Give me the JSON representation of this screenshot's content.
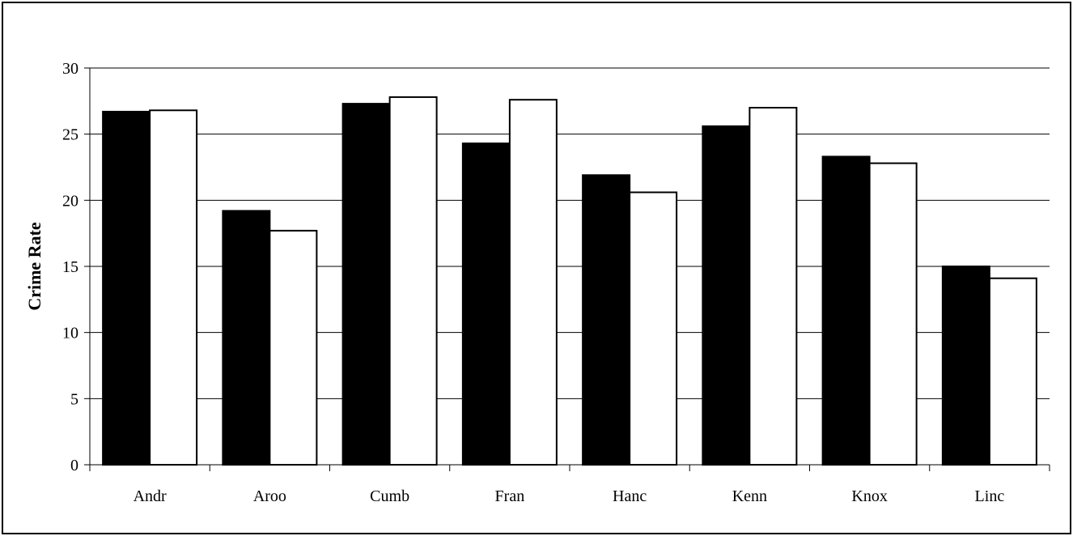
{
  "chart_data": {
    "type": "bar",
    "title": "",
    "xlabel": "",
    "ylabel": "Crime Rate",
    "ylim": [
      0,
      30
    ],
    "yticks": [
      0,
      5,
      10,
      15,
      20,
      25,
      30
    ],
    "grid": true,
    "legend": "none",
    "categories": [
      "Andr",
      "Aroo",
      "Cumb",
      "Fran",
      "Hanc",
      "Kenn",
      "Knox",
      "Linc"
    ],
    "series": [
      {
        "color": "#000000",
        "values": [
          26.7,
          19.2,
          27.3,
          24.3,
          21.9,
          25.6,
          23.3,
          15.0
        ]
      },
      {
        "color": "#ffffff",
        "values": [
          26.8,
          17.7,
          27.8,
          27.6,
          20.6,
          27.0,
          22.8,
          14.1
        ]
      }
    ]
  }
}
